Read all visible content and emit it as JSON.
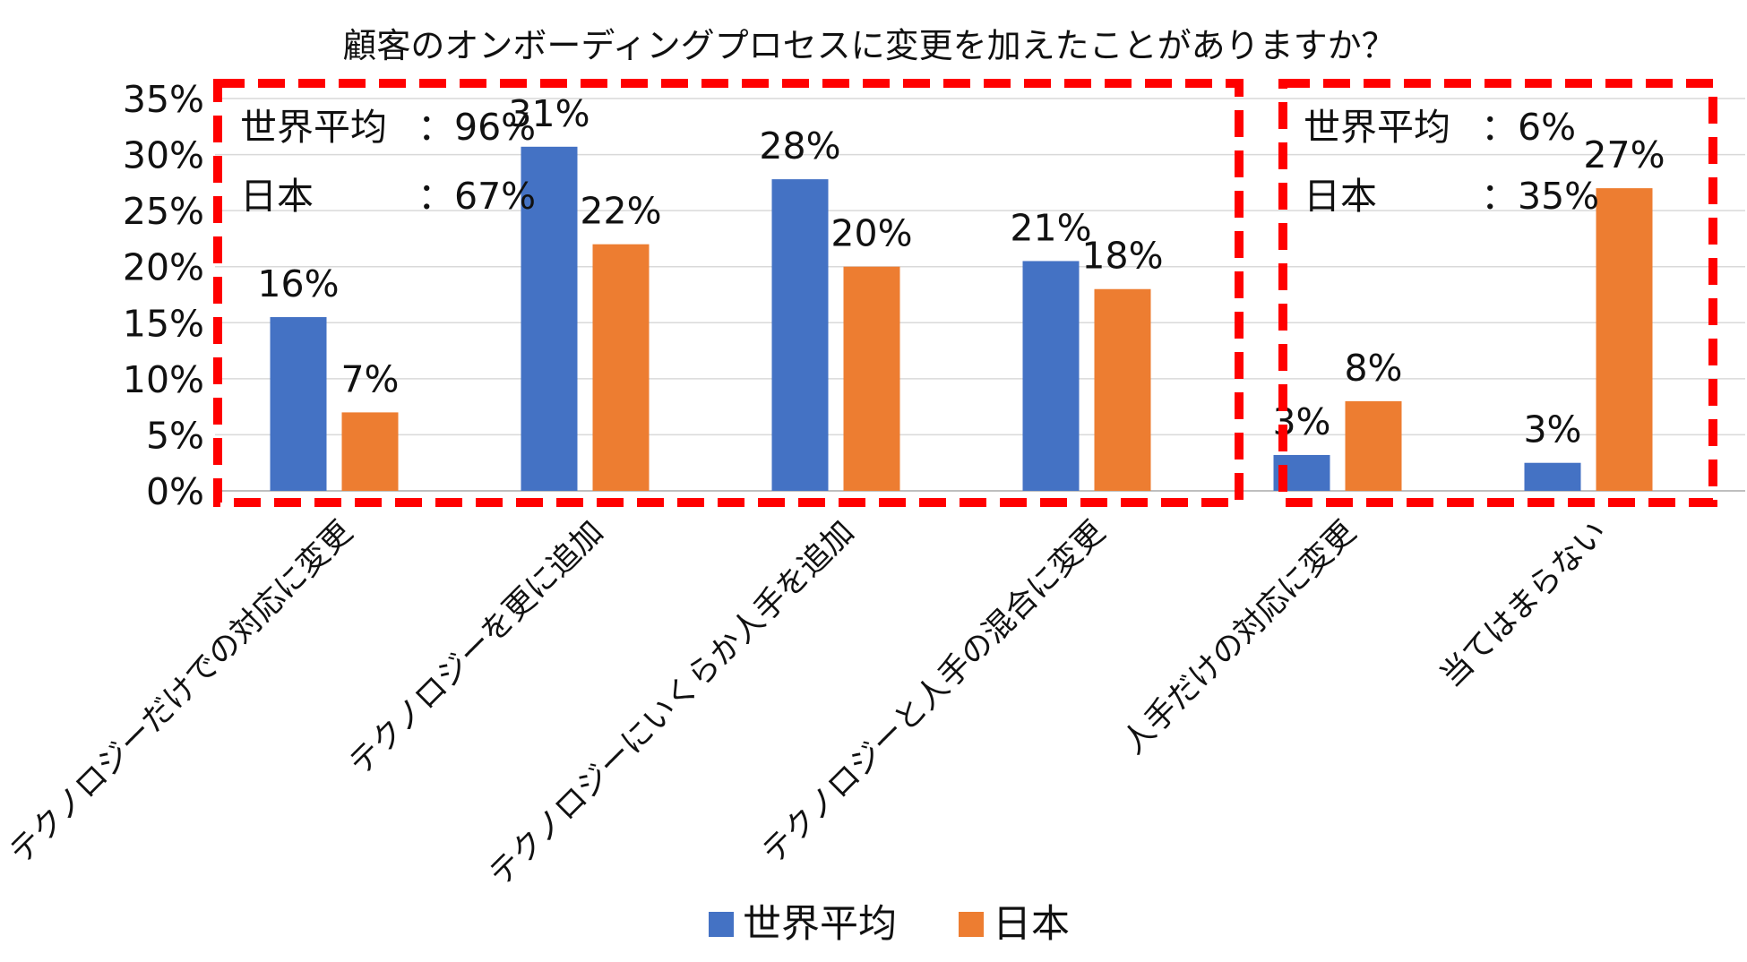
{
  "chart_data": {
    "type": "bar",
    "title": "顧客のオンボーディングプロセスに変更を加えたことがありますか？",
    "xlabel": "",
    "ylabel": "",
    "ylim": [
      0,
      35
    ],
    "y_ticks": [
      {
        "value": 0,
        "label": "0%"
      },
      {
        "value": 5,
        "label": "5%"
      },
      {
        "value": 10,
        "label": "10%"
      },
      {
        "value": 15,
        "label": "15%"
      },
      {
        "value": 20,
        "label": "20%"
      },
      {
        "value": 25,
        "label": "25%"
      },
      {
        "value": 30,
        "label": "30%"
      },
      {
        "value": 35,
        "label": "35%"
      }
    ],
    "grid": true,
    "legend_position": "bottom",
    "categories": [
      "テクノロジーだけでの対応に変更",
      "テクノロジーを更に追加",
      "テクノロジーにいくらか人手を追加",
      "テクノロジーと人手の混合に変更",
      "人手だけの対応に変更",
      "当てはまらない"
    ],
    "series": [
      {
        "name": "世界平均",
        "color": "#4472C4",
        "values": [
          15.5,
          30.7,
          27.8,
          20.5,
          3.2,
          2.5
        ],
        "labels": [
          "16%",
          "31%",
          "28%",
          "21%",
          "3%",
          "3%"
        ]
      },
      {
        "name": "日本",
        "color": "#ED7D31",
        "values": [
          7,
          22,
          20,
          18,
          8,
          27
        ],
        "labels": [
          "7%",
          "22%",
          "20%",
          "18%",
          "8%",
          "27%"
        ]
      }
    ],
    "annotations": [
      {
        "group": "left",
        "box_color": "#FF0000",
        "lines": [
          {
            "label": "世界平均",
            "value": "：96%"
          },
          {
            "label": "日本",
            "value": "：67%"
          }
        ]
      },
      {
        "group": "right",
        "box_color": "#FF0000",
        "lines": [
          {
            "label": "世界平均",
            "value": "：6%"
          },
          {
            "label": "日本",
            "value": "：35%"
          }
        ]
      }
    ]
  }
}
